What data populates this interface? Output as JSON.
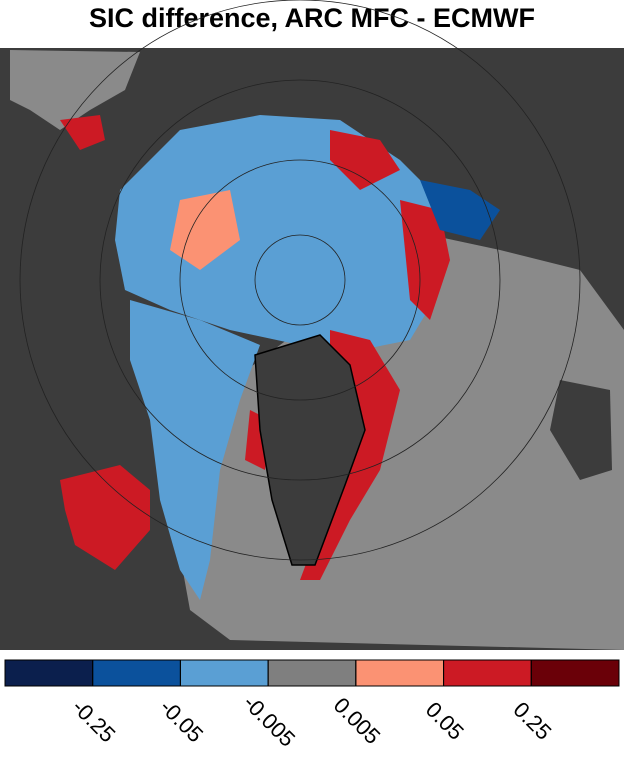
{
  "title": "SIC difference, ARC MFC - ECMWF",
  "colorbar": {
    "colors": [
      "#0b1f4d",
      "#0b519c",
      "#5a9fd4",
      "#7f7f7f",
      "#fb9273",
      "#cc1a24",
      "#6a0008"
    ],
    "ticks": [
      -0.25,
      -0.05,
      -0.005,
      0.005,
      0.05,
      0.25
    ]
  }
}
